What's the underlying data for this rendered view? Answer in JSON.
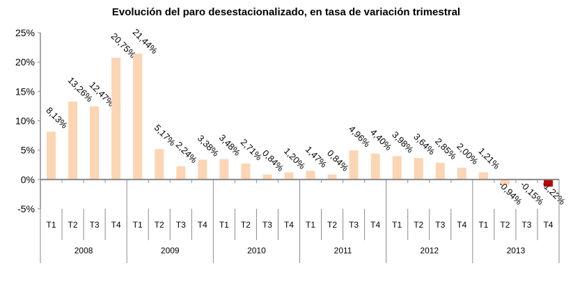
{
  "chart_data": {
    "type": "bar",
    "title": "Evolución del paro desestacionalizado, en tasa de variación trimestral",
    "xlabel": "",
    "ylabel": "",
    "ylim": [
      -5,
      25
    ],
    "yticks": [
      "-5%",
      "0%",
      "5%",
      "10%",
      "15%",
      "20%",
      "25%"
    ],
    "ytick_values": [
      -5,
      0,
      5,
      10,
      15,
      20,
      25
    ],
    "years": [
      "2008",
      "2009",
      "2010",
      "2011",
      "2012",
      "2013"
    ],
    "quarters": [
      "T1",
      "T2",
      "T3",
      "T4"
    ],
    "values": [
      8.13,
      13.26,
      12.47,
      20.75,
      21.44,
      5.17,
      2.24,
      3.38,
      3.48,
      2.71,
      0.84,
      1.2,
      1.47,
      0.84,
      4.96,
      4.4,
      3.98,
      3.64,
      2.85,
      2.0,
      1.21,
      -0.94,
      -0.15,
      -1.22
    ],
    "labels": [
      "8,13%",
      "13,26%",
      "12,47%",
      "20,75%",
      "21,44%",
      "5,17%",
      "2,24%",
      "3,38%",
      "3,48%",
      "2,71%",
      "0,84%",
      "1,20%",
      "1,47%",
      "0,84%",
      "4,96%",
      "4,40%",
      "3,98%",
      "3,64%",
      "2,85%",
      "2,00%",
      "1,21%",
      "-0,94%",
      "-0,15%",
      "-1,22%"
    ],
    "bar_color": "#fcd5b4",
    "highlight_color": "#c00000",
    "highlight_index": 23,
    "grid": false
  }
}
